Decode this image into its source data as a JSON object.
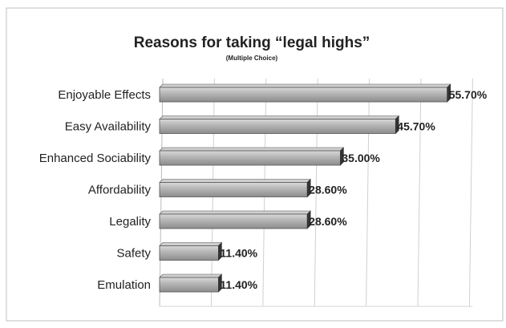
{
  "chart_data": {
    "type": "bar",
    "orientation": "horizontal",
    "title": "Reasons for taking “legal highs”",
    "subtitle": "(Multiple Choice)",
    "categories": [
      "Enjoyable Effects",
      "Easy Availability",
      "Enhanced Sociability",
      "Affordability",
      "Legality",
      "Safety",
      "Emulation"
    ],
    "values": [
      55.7,
      45.7,
      35.0,
      28.6,
      28.6,
      11.4,
      11.4
    ],
    "data_labels": [
      "55.70%",
      "45.70%",
      "35.00%",
      "28.60%",
      "28.60%",
      "11.40%",
      "11.40%"
    ],
    "xlim": [
      0,
      60
    ],
    "grid": true,
    "legend": "none",
    "colors": {
      "bar": "#a8a8a8",
      "bar_edge": "#555555",
      "bar_end": "#333333",
      "grid": "#d0d0d0",
      "frame": "#bfbfbf",
      "text": "#222222"
    }
  }
}
